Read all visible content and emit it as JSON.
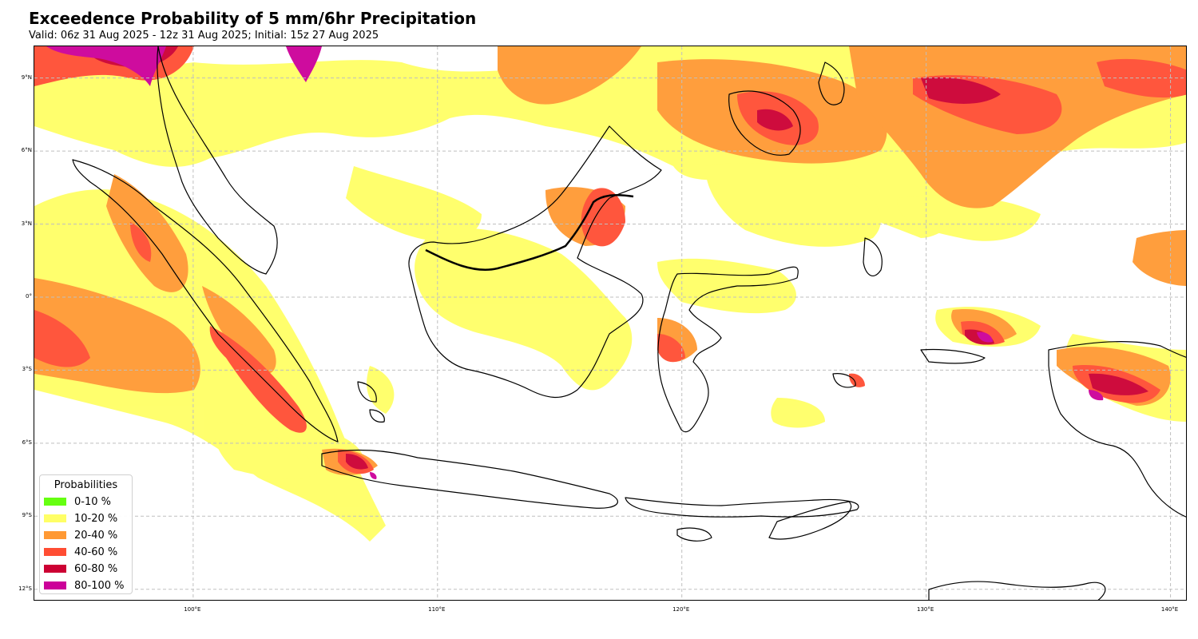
{
  "header": {
    "title": "Exceedence Probability of 5 mm/6hr Precipitation",
    "subtitle": "Valid: 06z 31 Aug 2025 - 12z 31 Aug 2025; Initial: 15z 27 Aug 2025"
  },
  "map": {
    "extent": {
      "lon_min": 93.5,
      "lon_max": 140.7,
      "lat_min": -12.5,
      "lat_max": 10.3
    },
    "lat_ticks": [
      {
        "value": 9,
        "label": "9°N"
      },
      {
        "value": 6,
        "label": "6°N"
      },
      {
        "value": 3,
        "label": "3°N"
      },
      {
        "value": 0,
        "label": "0°"
      },
      {
        "value": -3,
        "label": "3°S"
      },
      {
        "value": -6,
        "label": "6°S"
      },
      {
        "value": -9,
        "label": "9°S"
      },
      {
        "value": -12,
        "label": "12°S"
      }
    ],
    "lon_ticks": [
      {
        "value": 100,
        "label": "100°E"
      },
      {
        "value": 110,
        "label": "110°E"
      },
      {
        "value": 120,
        "label": "120°E"
      },
      {
        "value": 130,
        "label": "130°E"
      },
      {
        "value": 140,
        "label": "140°E"
      }
    ],
    "gridlines": true
  },
  "legend": {
    "title": "Probabilities",
    "items": [
      {
        "label": "0-10 %",
        "color": "#66ff11"
      },
      {
        "label": "10-20 %",
        "color": "#ffff66"
      },
      {
        "label": "20-40 %",
        "color": "#ff9933"
      },
      {
        "label": "40-60 %",
        "color": "#ff4d33"
      },
      {
        "label": "60-80 %",
        "color": "#cc0033"
      },
      {
        "label": "80-100 %",
        "color": "#cc0099"
      }
    ]
  }
}
